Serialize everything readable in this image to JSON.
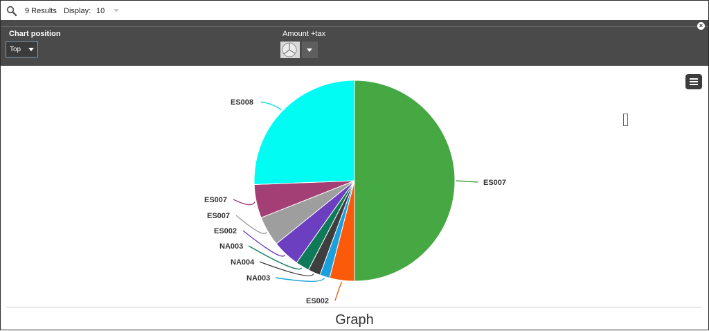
{
  "results": {
    "count_text": "9 Results",
    "display_label": "Display:",
    "display_value": "10"
  },
  "toolbar": {
    "chart_position_label": "Chart position",
    "chart_position_value": "Top",
    "measure_label": "Amount +tax",
    "chart_type_icon": "pie-chart-icon",
    "close_icon": "close-circle-icon"
  },
  "graph_title": "Graph",
  "chart_data": {
    "type": "pie",
    "slices": [
      {
        "label": "ES007",
        "value": 50.0,
        "color": "#45a843"
      },
      {
        "label": "ES002",
        "value": 4.0,
        "color": "#fa5a0a"
      },
      {
        "label": "NA003",
        "value": 1.6,
        "color": "#1ba0de"
      },
      {
        "label": "NA004",
        "value": 2.0,
        "color": "#3e3e3e"
      },
      {
        "label": "NA003",
        "value": 2.2,
        "color": "#0f7a5a"
      },
      {
        "label": "ES002",
        "value": 4.4,
        "color": "#6b3fbf"
      },
      {
        "label": "ES007",
        "value": 4.8,
        "color": "#9e9e9e"
      },
      {
        "label": "ES007",
        "value": 5.4,
        "color": "#a33f74"
      },
      {
        "label": "ES008",
        "value": 25.6,
        "color": "#00fcf2"
      }
    ]
  }
}
